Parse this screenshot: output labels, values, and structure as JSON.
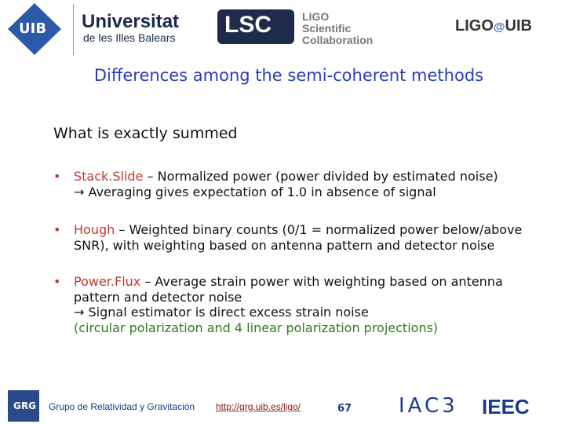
{
  "header": {
    "uib_logo": "UIB",
    "university": "Universitat",
    "university_sub": "de les Illes Balears",
    "lsc_logo": "LSC",
    "lsc_name": [
      "LIGO",
      "Scientific",
      "Collaboration"
    ],
    "ligo_uib": "LIGO",
    "ligo_uib_at": "@",
    "ligo_uib_uib": "UIB"
  },
  "title": "Differences among the semi-coherent methods",
  "subtitle": "What is exactly summed",
  "bullets": [
    {
      "term": "Stack.Slide",
      "lines": [
        " – Normalized power (power divided by estimated noise)",
        "→ Averaging gives expectation of 1.0 in absence of signal"
      ]
    },
    {
      "term": "Hough",
      "lines": [
        " – Weighted binary counts (0/1 = normalized power below/above",
        "SNR), with weighting based on antenna pattern and detector noise"
      ]
    },
    {
      "term": "Power.Flux",
      "lines": [
        " – Average strain power with weighting based on antenna",
        "pattern and detector noise",
        "→ Signal estimator is direct excess strain noise"
      ],
      "note": "(circular polarization and 4 linear polarization projections)"
    }
  ],
  "footer": {
    "grg_logo": "GRG",
    "group": "Grupo de Relatividad y Gravitación",
    "url": "http://grg.uib.es/ligo/",
    "page": "67",
    "iac_logo": "IAC3",
    "ieec_logo": "IEEC"
  }
}
